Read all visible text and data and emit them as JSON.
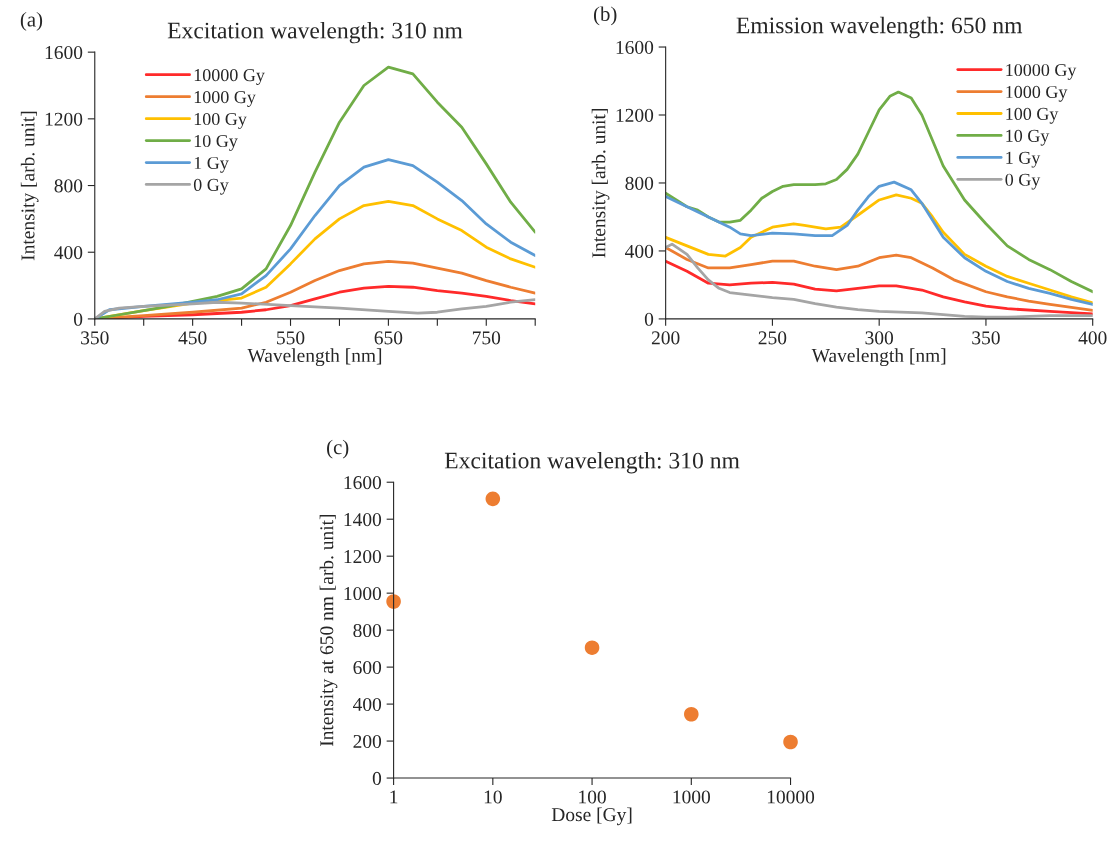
{
  "chart_data": [
    {
      "type": "line",
      "title": "Excitation wavelength: 310 nm",
      "xlabel": "Wavelength [nm]",
      "ylabel": "Intensity [arb. unit]",
      "annotations": [
        "(a)"
      ],
      "xlim": [
        350,
        800
      ],
      "ylim": [
        0,
        1600
      ],
      "xticks": [
        350,
        {
          "value": 400,
          "label": null
        },
        450,
        {
          "value": 500,
          "label": null
        },
        550,
        {
          "value": 600,
          "label": null
        },
        650,
        {
          "value": 700,
          "label": null
        },
        750,
        {
          "value": 800,
          "label": null
        }
      ],
      "yticks": [
        0,
        400,
        800,
        1200,
        1600
      ],
      "legend": "top left",
      "grid": false,
      "series": [
        {
          "name": "10000 Gy",
          "color": "#ff2a2a",
          "x": [
            350,
            400,
            450,
            500,
            525,
            550,
            575,
            600,
            625,
            650,
            675,
            700,
            725,
            750,
            775,
            800
          ],
          "values": [
            0,
            15,
            25,
            40,
            55,
            80,
            120,
            160,
            185,
            195,
            190,
            170,
            155,
            135,
            110,
            90
          ]
        },
        {
          "name": "1000 Gy",
          "color": "#ed7d31",
          "x": [
            350,
            400,
            450,
            500,
            525,
            550,
            575,
            600,
            625,
            650,
            675,
            700,
            725,
            750,
            775,
            800
          ],
          "values": [
            0,
            20,
            40,
            65,
            100,
            160,
            230,
            290,
            330,
            345,
            335,
            305,
            275,
            230,
            190,
            155
          ]
        },
        {
          "name": "100 Gy",
          "color": "#ffc000",
          "x": [
            350,
            400,
            450,
            500,
            525,
            550,
            575,
            600,
            625,
            650,
            675,
            700,
            725,
            750,
            775,
            800
          ],
          "values": [
            0,
            50,
            95,
            125,
            190,
            330,
            480,
            600,
            680,
            705,
            680,
            600,
            530,
            430,
            360,
            310
          ]
        },
        {
          "name": "10 Gy",
          "color": "#70ad47",
          "x": [
            350,
            375,
            400,
            425,
            450,
            475,
            500,
            525,
            550,
            575,
            600,
            625,
            650,
            675,
            700,
            725,
            750,
            775,
            800
          ],
          "values": [
            0,
            25,
            50,
            75,
            105,
            135,
            180,
            300,
            560,
            880,
            1180,
            1400,
            1510,
            1470,
            1300,
            1150,
            930,
            700,
            520
          ]
        },
        {
          "name": "1 Gy",
          "color": "#5b9bd5",
          "x": [
            350,
            365,
            400,
            450,
            475,
            500,
            525,
            550,
            575,
            600,
            625,
            650,
            675,
            700,
            725,
            750,
            775,
            800
          ],
          "values": [
            0,
            55,
            75,
            100,
            115,
            150,
            260,
            420,
            620,
            800,
            910,
            955,
            920,
            820,
            710,
            570,
            460,
            380
          ]
        },
        {
          "name": "0 Gy",
          "color": "#a5a5a5",
          "x": [
            350,
            360,
            375,
            400,
            450,
            475,
            500,
            550,
            600,
            650,
            680,
            700,
            725,
            750,
            775,
            800
          ],
          "values": [
            0,
            45,
            65,
            75,
            90,
            100,
            95,
            80,
            65,
            45,
            35,
            40,
            60,
            75,
            100,
            115
          ]
        }
      ]
    },
    {
      "type": "line",
      "title": "Emission wavelength: 650 nm",
      "xlabel": "Wavelength [nm]",
      "ylabel": "Intensity [arb. unit]",
      "annotations": [
        "(b)"
      ],
      "xlim": [
        200,
        400
      ],
      "ylim": [
        0,
        1600
      ],
      "xticks": [
        200,
        250,
        300,
        350,
        400
      ],
      "yticks": [
        0,
        400,
        800,
        1200,
        1600
      ],
      "legend": "top right",
      "grid": false,
      "series": [
        {
          "name": "10000 Gy",
          "color": "#ff2a2a",
          "x": [
            200,
            210,
            220,
            230,
            240,
            250,
            260,
            270,
            280,
            290,
            300,
            308,
            320,
            330,
            340,
            350,
            360,
            380,
            400
          ],
          "values": [
            340,
            280,
            210,
            200,
            210,
            215,
            205,
            175,
            165,
            180,
            195,
            195,
            170,
            130,
            100,
            75,
            60,
            45,
            30
          ]
        },
        {
          "name": "1000 Gy",
          "color": "#ed7d31",
          "x": [
            200,
            210,
            220,
            230,
            240,
            250,
            260,
            270,
            280,
            290,
            300,
            308,
            315,
            325,
            335,
            350,
            360,
            370,
            380,
            400
          ],
          "values": [
            420,
            350,
            300,
            300,
            320,
            340,
            340,
            310,
            290,
            310,
            360,
            375,
            360,
            300,
            230,
            160,
            130,
            105,
            85,
            50
          ]
        },
        {
          "name": "100 Gy",
          "color": "#ffc000",
          "x": [
            200,
            210,
            220,
            228,
            235,
            240,
            250,
            260,
            265,
            275,
            282,
            290,
            300,
            308,
            315,
            320,
            325,
            330,
            340,
            350,
            360,
            370,
            380,
            390,
            400
          ],
          "values": [
            480,
            430,
            380,
            370,
            420,
            480,
            540,
            560,
            550,
            530,
            540,
            610,
            700,
            730,
            710,
            680,
            600,
            510,
            380,
            310,
            250,
            210,
            170,
            130,
            95
          ]
        },
        {
          "name": "10 Gy",
          "color": "#70ad47",
          "x": [
            200,
            205,
            210,
            215,
            220,
            225,
            230,
            235,
            240,
            245,
            250,
            255,
            260,
            270,
            275,
            280,
            285,
            290,
            295,
            300,
            305,
            309,
            315,
            320,
            325,
            330,
            340,
            350,
            360,
            370,
            380,
            390,
            400
          ],
          "values": [
            740,
            700,
            660,
            640,
            600,
            570,
            570,
            580,
            640,
            710,
            750,
            780,
            790,
            790,
            795,
            820,
            880,
            970,
            1100,
            1230,
            1310,
            1335,
            1300,
            1200,
            1050,
            900,
            700,
            560,
            430,
            350,
            290,
            220,
            160
          ]
        },
        {
          "name": "1 Gy",
          "color": "#5b9bd5",
          "x": [
            200,
            210,
            220,
            230,
            235,
            240,
            250,
            260,
            270,
            278,
            285,
            290,
            295,
            300,
            307,
            315,
            320,
            325,
            330,
            340,
            350,
            360,
            370,
            380,
            390,
            400
          ],
          "values": [
            720,
            660,
            600,
            540,
            500,
            490,
            505,
            500,
            490,
            490,
            550,
            640,
            720,
            780,
            805,
            760,
            680,
            580,
            480,
            360,
            280,
            220,
            180,
            150,
            115,
            85
          ]
        },
        {
          "name": "0 Gy",
          "color": "#a5a5a5",
          "x": [
            200,
            203,
            210,
            215,
            220,
            225,
            230,
            240,
            250,
            260,
            270,
            280,
            290,
            300,
            310,
            320,
            330,
            340,
            350,
            360,
            380,
            400
          ],
          "values": [
            420,
            440,
            380,
            300,
            230,
            180,
            155,
            140,
            125,
            115,
            90,
            70,
            55,
            45,
            40,
            35,
            25,
            15,
            10,
            10,
            20,
            20
          ]
        }
      ]
    },
    {
      "type": "scatter",
      "title": "Excitation wavelength: 310 nm",
      "xlabel": "Dose [Gy]",
      "ylabel": "Intensity at 650 nm [arb. unit]",
      "annotations": [
        "(c)"
      ],
      "log": "x",
      "xlim": [
        1,
        10000
      ],
      "ylim": [
        0,
        1600
      ],
      "xticks": [
        1,
        10,
        100,
        1000,
        10000
      ],
      "yticks": [
        0,
        200,
        400,
        600,
        800,
        1000,
        1200,
        1400,
        1600
      ],
      "grid": false,
      "marker": "circle",
      "series": [
        {
          "color": "#ed7d31",
          "x": [
            1,
            10,
            100,
            1000,
            10000
          ],
          "values": [
            955,
            1510,
            705,
            345,
            195
          ]
        }
      ]
    }
  ]
}
